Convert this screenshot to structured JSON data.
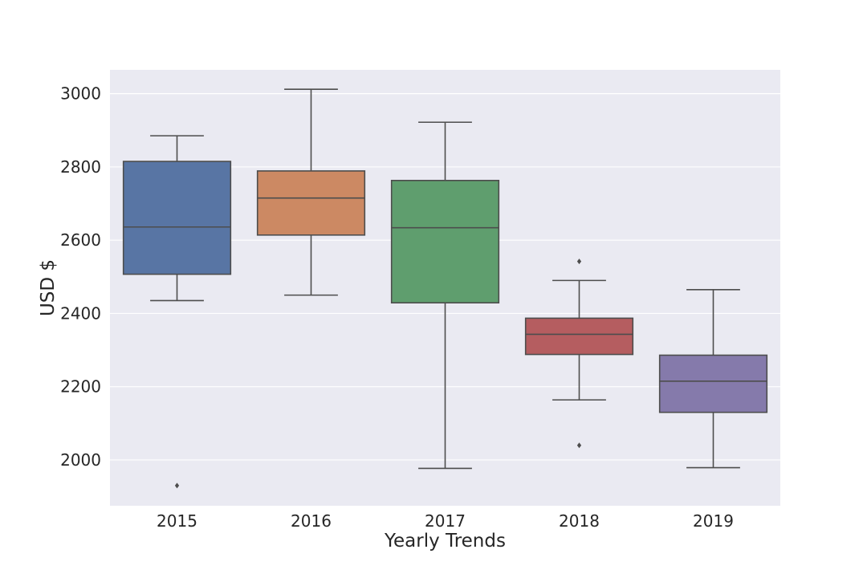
{
  "chart_data": {
    "type": "box",
    "title": "",
    "xlabel": "Yearly Trends",
    "ylabel": "USD $",
    "ylim": [
      1875,
      3065
    ],
    "yticks": [
      2000,
      2200,
      2400,
      2600,
      2800,
      3000
    ],
    "grid": true,
    "categories": [
      "2015",
      "2016",
      "2017",
      "2018",
      "2019"
    ],
    "boxes": [
      {
        "category": "2015",
        "color": "#5875a4",
        "whisker_low": 2435,
        "q1": 2507,
        "median": 2636,
        "q3": 2815,
        "whisker_high": 2885,
        "outliers": [
          1930
        ]
      },
      {
        "category": "2016",
        "color": "#cc8963",
        "whisker_low": 2450,
        "q1": 2614,
        "median": 2715,
        "q3": 2789,
        "whisker_high": 3012,
        "outliers": []
      },
      {
        "category": "2017",
        "color": "#5f9e6e",
        "whisker_low": 1977,
        "q1": 2429,
        "median": 2634,
        "q3": 2763,
        "whisker_high": 2922,
        "outliers": []
      },
      {
        "category": "2018",
        "color": "#b55d60",
        "whisker_low": 2164,
        "q1": 2288,
        "median": 2343,
        "q3": 2387,
        "whisker_high": 2490,
        "outliers": [
          2542,
          2040
        ]
      },
      {
        "category": "2019",
        "color": "#857aab",
        "whisker_low": 1979,
        "q1": 2130,
        "median": 2215,
        "q3": 2286,
        "whisker_high": 2465,
        "outliers": []
      }
    ]
  }
}
